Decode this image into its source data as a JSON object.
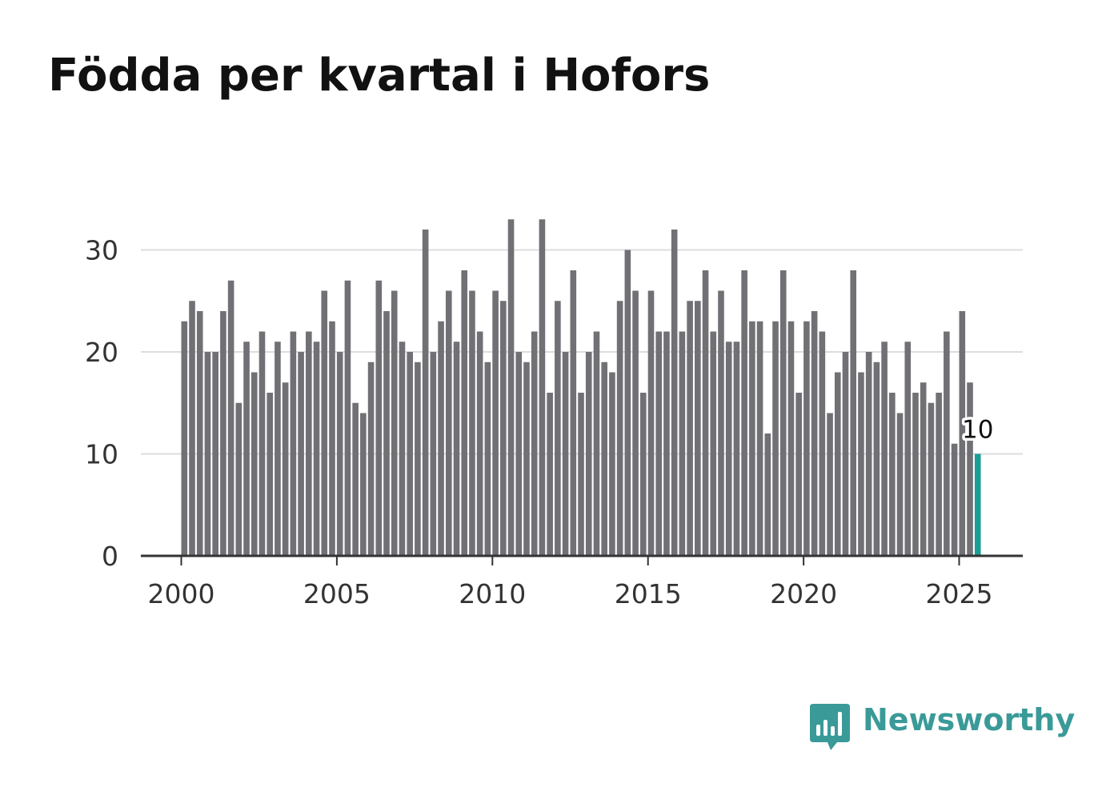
{
  "title": "Födda per kvartal i Hofors",
  "chart_data": {
    "type": "bar",
    "title": "Födda per kvartal i Hofors",
    "xlabel": "",
    "ylabel": "",
    "start": "2000 Q1",
    "x_ticks": [
      "2000",
      "2005",
      "2010",
      "2015",
      "2020",
      "2025"
    ],
    "y_ticks": [
      "0",
      "10",
      "20",
      "30"
    ],
    "ylim": [
      0,
      35
    ],
    "values": [
      23,
      25,
      24,
      20,
      20,
      24,
      27,
      15,
      21,
      18,
      22,
      16,
      21,
      17,
      22,
      20,
      22,
      21,
      26,
      23,
      20,
      27,
      15,
      14,
      19,
      27,
      24,
      26,
      21,
      20,
      19,
      32,
      20,
      23,
      26,
      21,
      28,
      26,
      22,
      19,
      26,
      25,
      33,
      20,
      19,
      22,
      33,
      16,
      25,
      20,
      28,
      16,
      20,
      22,
      19,
      18,
      25,
      30,
      26,
      16,
      26,
      22,
      22,
      32,
      22,
      25,
      25,
      28,
      22,
      26,
      21,
      21,
      28,
      23,
      23,
      12,
      23,
      28,
      23,
      16,
      23,
      24,
      22,
      14,
      18,
      20,
      28,
      18,
      20,
      19,
      21,
      16,
      14,
      21,
      16,
      17,
      15,
      16,
      22,
      11,
      24,
      17,
      10
    ],
    "last_value_label": "10",
    "bar_color": "#707075",
    "highlight_color": "#1a9e96",
    "gridlines": true
  },
  "brand": {
    "name": "Newsworthy",
    "color": "#3a9a98"
  }
}
